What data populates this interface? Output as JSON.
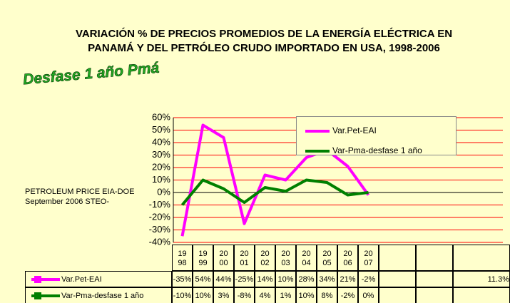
{
  "chart_data": {
    "type": "line",
    "title": "VARIACIÓN % DE PRECIOS PROMEDIOS DE LA ENERGÍA ELÉCTRICA EN PANAMÁ Y DEL PETRÓLEO CRUDO IMPORTADO EN USA,  1998-2006",
    "annotations": [
      "Desfase 1 año Pmá",
      "PETROLEUM PRICE EIA-DOE  September 2006 STEO-"
    ],
    "categories": [
      "1998",
      "1999",
      "2000",
      "2001",
      "2002",
      "2003",
      "2004",
      "2005",
      "2006",
      "2007",
      null,
      null,
      null
    ],
    "series": [
      {
        "name": "Var.Pet-EAI",
        "color": "#ff00ff",
        "values": [
          -35,
          54,
          44,
          -25,
          14,
          10,
          28,
          34,
          21,
          -2,
          null,
          null,
          11.3
        ],
        "value_labels": [
          "-35%",
          "54%",
          "44%",
          "-25%",
          "14%",
          "10%",
          "28%",
          "34%",
          "21%",
          "-2%",
          null,
          null,
          "11.3%"
        ]
      },
      {
        "name": "Var-Pma-desfase 1 año",
        "color": "#008000",
        "values": [
          -10,
          10,
          3,
          -8,
          4,
          1,
          10,
          8,
          -2,
          0,
          null,
          null,
          null
        ],
        "value_labels": [
          "-10%",
          "10%",
          "3%",
          "-8%",
          "4%",
          "1%",
          "10%",
          "8%",
          "-2%",
          "0%",
          null,
          null,
          null
        ]
      }
    ],
    "ylim": [
      -40,
      60
    ],
    "yticks": [
      {
        "value": -40,
        "label": "-40%"
      },
      {
        "value": -30,
        "label": "-30%"
      },
      {
        "value": -20,
        "label": "-20%"
      },
      {
        "value": -10,
        "label": "-10%"
      },
      {
        "value": 0,
        "label": "0%"
      },
      {
        "value": 10,
        "label": "10%"
      },
      {
        "value": 20,
        "label": "20%"
      },
      {
        "value": 30,
        "label": "30%"
      },
      {
        "value": 40,
        "label": "40%"
      },
      {
        "value": 50,
        "label": "50%"
      },
      {
        "value": 60,
        "label": "60%"
      }
    ],
    "grid": true,
    "grid_color": "#ff0000",
    "legend": "top-right"
  }
}
